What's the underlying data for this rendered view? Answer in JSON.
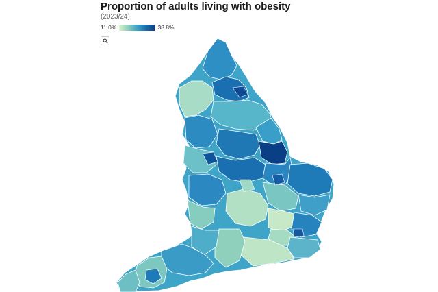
{
  "title": "Proportion of adults living with obesity",
  "subtitle": "(2023/24)",
  "legend": {
    "min_label": "11.0%",
    "max_label": "38.8%"
  },
  "colors": {
    "low": "#d9f0c8",
    "mid_low": "#8fd0bd",
    "mid": "#3fa5c8",
    "mid_high": "#1a6fb0",
    "high": "#0a3f86",
    "borders": "#ffffff"
  },
  "controls": {
    "zoom_icon": "magnifier-icon"
  }
}
